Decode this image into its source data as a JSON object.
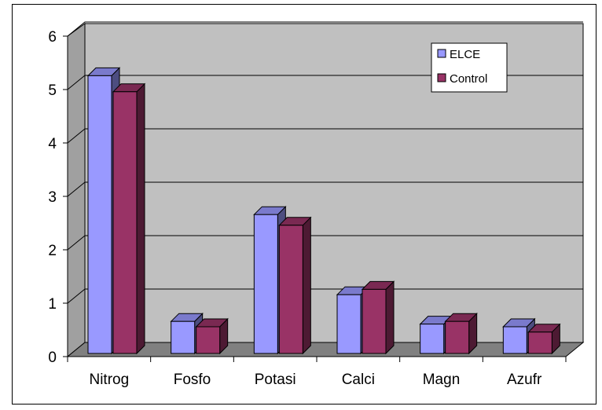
{
  "chart_data": {
    "type": "bar",
    "categories": [
      "Nitrog",
      "Fosfo",
      "Potasi",
      "Calci",
      "Magn",
      "Azufr"
    ],
    "series": [
      {
        "name": "ELCE",
        "values": [
          5.2,
          0.6,
          2.6,
          1.1,
          0.55,
          0.5
        ],
        "color": "#9999ff"
      },
      {
        "name": "Control",
        "values": [
          4.9,
          0.5,
          2.4,
          1.2,
          0.6,
          0.4
        ],
        "color": "#993366"
      }
    ],
    "y_ticks": [
      "0",
      "1",
      "2",
      "3",
      "4",
      "5",
      "6"
    ],
    "ylim": [
      0,
      6
    ],
    "grid": true,
    "legend_position": "top-right",
    "title": "",
    "xlabel": "",
    "ylabel": ""
  }
}
